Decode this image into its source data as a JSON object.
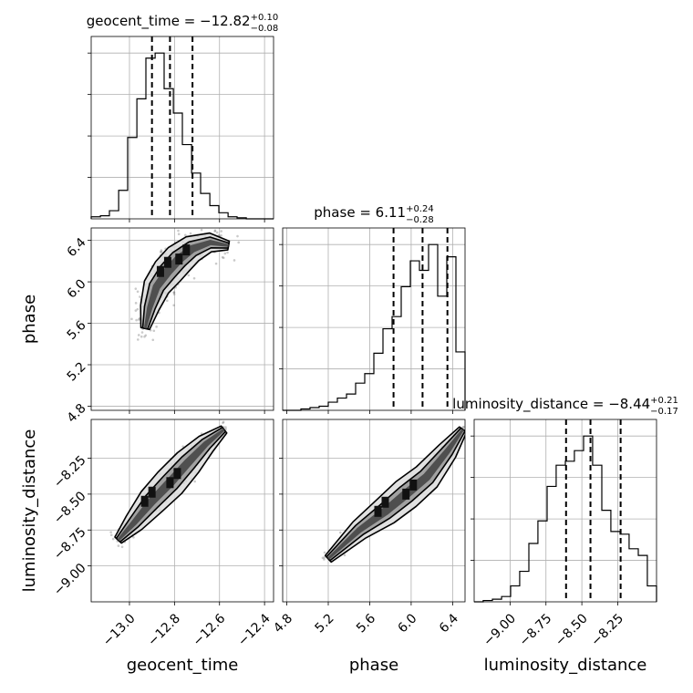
{
  "chart_data": {
    "type": "scatter",
    "plot_kind": "corner",
    "parameters": [
      "geocent_time",
      "phase",
      "luminosity_distance"
    ],
    "axis_labels": {
      "geocent_time": "geocent_time",
      "phase": "phase",
      "luminosity_distance": "luminosity_distance"
    },
    "ranges": {
      "geocent_time": [
        -13.17,
        -12.36
      ],
      "phase": [
        4.76,
        6.52
      ],
      "luminosity_distance": [
        -9.25,
        -7.98
      ]
    },
    "ticks": {
      "geocent_time": [
        -13.0,
        -12.8,
        -12.6,
        -12.4
      ],
      "phase": [
        4.8,
        5.2,
        5.6,
        6.0,
        6.4
      ],
      "luminosity_distance": [
        -9.0,
        -8.75,
        -8.5,
        -8.25
      ]
    },
    "tick_labels": {
      "geocent_time": [
        "−13.0",
        "−12.8",
        "−12.6",
        "−12.4"
      ],
      "phase": [
        "4.8",
        "5.2",
        "5.6",
        "6.0",
        "6.4"
      ],
      "luminosity_distance": [
        "−9.00",
        "−8.75",
        "−8.50",
        "−8.25"
      ]
    },
    "titles": {
      "geocent_time": {
        "text": "geocent_time = −12.82",
        "plus": "+0.10",
        "minus": "−0.08"
      },
      "phase": {
        "text": "phase = 6.11",
        "plus": "+0.24",
        "minus": "−0.28"
      },
      "luminosity_distance": {
        "text": "luminosity_distance = −8.44",
        "plus": "+0.21",
        "minus": "−0.17"
      }
    },
    "quantiles": {
      "geocent_time": [
        -12.9,
        -12.82,
        -12.72
      ],
      "phase": [
        5.83,
        6.11,
        6.35
      ],
      "luminosity_distance": [
        -8.61,
        -8.44,
        -8.23
      ]
    },
    "histograms": {
      "geocent_time": {
        "edges": [
          -13.17,
          -13.129,
          -13.089,
          -13.048,
          -13.008,
          -12.967,
          -12.927,
          -12.886,
          -12.846,
          -12.805,
          -12.765,
          -12.724,
          -12.684,
          -12.643,
          -12.603,
          -12.562,
          -12.522,
          -12.481,
          -12.441,
          -12.4,
          -12.36
        ],
        "counts": [
          2,
          3,
          8,
          28,
          80,
          118,
          158,
          163,
          128,
          104,
          73,
          45,
          25,
          13,
          6,
          2,
          1,
          0,
          0,
          0
        ]
      },
      "phase": {
        "edges": [
          4.76,
          4.848,
          4.936,
          5.024,
          5.112,
          5.2,
          5.288,
          5.376,
          5.464,
          5.552,
          5.64,
          5.728,
          5.816,
          5.904,
          5.992,
          6.08,
          6.168,
          6.256,
          6.344,
          6.432,
          6.52
        ],
        "counts": [
          0,
          0,
          1,
          2,
          3,
          6,
          9,
          12,
          20,
          27,
          42,
          60,
          69,
          91,
          110,
          103,
          122,
          84,
          113,
          43
        ]
      },
      "luminosity_distance": {
        "edges": [
          -9.25,
          -9.187,
          -9.123,
          -9.059,
          -8.996,
          -8.933,
          -8.869,
          -8.806,
          -8.742,
          -8.679,
          -8.615,
          -8.552,
          -8.488,
          -8.425,
          -8.361,
          -8.298,
          -8.234,
          -8.171,
          -8.107,
          -8.044,
          -7.98
        ],
        "counts": [
          0,
          1,
          2,
          4,
          12,
          23,
          44,
          61,
          87,
          103,
          106,
          114,
          125,
          103,
          69,
          53,
          51,
          40,
          35,
          12
        ]
      }
    },
    "scatter_2d": [
      {
        "x": "geocent_time",
        "y": "phase",
        "ridge": [
          [
            -12.93,
            5.55
          ],
          [
            -12.91,
            5.75
          ],
          [
            -12.88,
            5.95
          ],
          [
            -12.83,
            6.1
          ],
          [
            -12.78,
            6.22
          ],
          [
            -12.72,
            6.32
          ],
          [
            -12.64,
            6.38
          ],
          [
            -12.56,
            6.35
          ]
        ],
        "spread": 0.12
      },
      {
        "x": "geocent_time",
        "y": "luminosity_distance",
        "ridge": [
          [
            -13.05,
            -8.82
          ],
          [
            -12.98,
            -8.7
          ],
          [
            -12.9,
            -8.55
          ],
          [
            -12.82,
            -8.42
          ],
          [
            -12.74,
            -8.28
          ],
          [
            -12.66,
            -8.15
          ],
          [
            -12.58,
            -8.05
          ]
        ],
        "spread": 0.08
      },
      {
        "x": "phase",
        "y": "luminosity_distance",
        "ridge": [
          [
            5.2,
            -8.95
          ],
          [
            5.5,
            -8.75
          ],
          [
            5.75,
            -8.62
          ],
          [
            5.95,
            -8.5
          ],
          [
            6.15,
            -8.38
          ],
          [
            6.35,
            -8.2
          ],
          [
            6.5,
            -8.05
          ]
        ],
        "spread": 0.05
      }
    ]
  }
}
